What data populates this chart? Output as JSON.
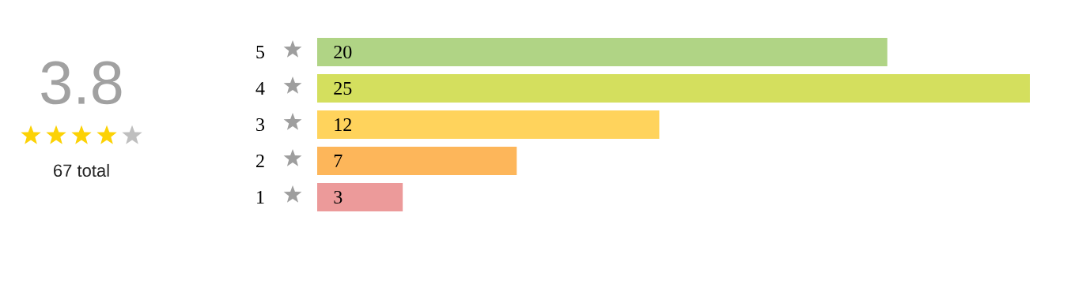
{
  "chart_data": {
    "type": "bar",
    "orientation": "horizontal",
    "categories": [
      "5",
      "4",
      "3",
      "2",
      "1"
    ],
    "values": [
      20,
      25,
      12,
      7,
      3
    ],
    "colors": [
      "#b0d485",
      "#d4df5e",
      "#ffd35c",
      "#fdb65a",
      "#ec9a9a"
    ],
    "xlim": [
      0,
      25
    ],
    "tick_labels": "y",
    "data_labels": true,
    "annotations": [
      "3.8",
      "67 total"
    ]
  }
}
